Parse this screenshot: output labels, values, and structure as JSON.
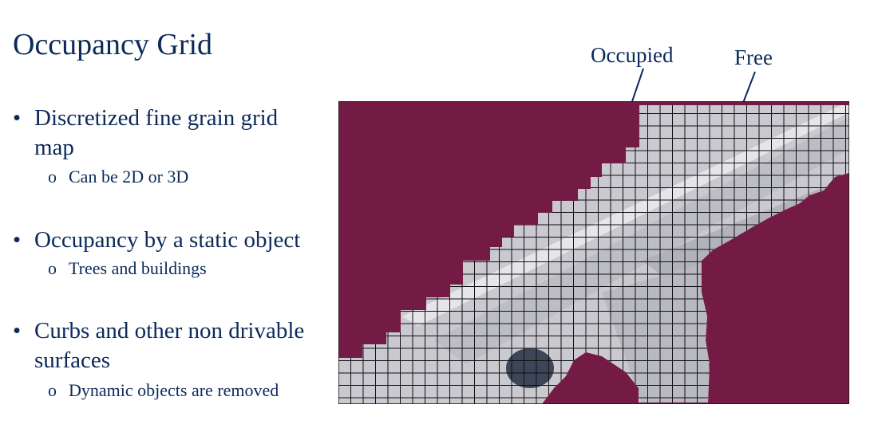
{
  "slide": {
    "title": "Occupancy Grid",
    "bullets": [
      {
        "text_line1": "Discretized fine grain grid",
        "text_line2": "map",
        "sub": "Can be 2D or 3D"
      },
      {
        "text_line1": "Occupancy by a static object",
        "sub": "Trees and buildings"
      },
      {
        "text_line1": "Curbs and other non drivable",
        "text_line2": "surfaces",
        "sub": "Dynamic objects are removed"
      }
    ],
    "bullet_glyph": "•",
    "sub_glyph": "o",
    "labels": {
      "occupied": "Occupied",
      "free": "Free"
    },
    "colors": {
      "occupied": "#741b45",
      "free": "#c9c9cf",
      "text": "#0b2a5b",
      "grid_line": "#111111"
    }
  }
}
